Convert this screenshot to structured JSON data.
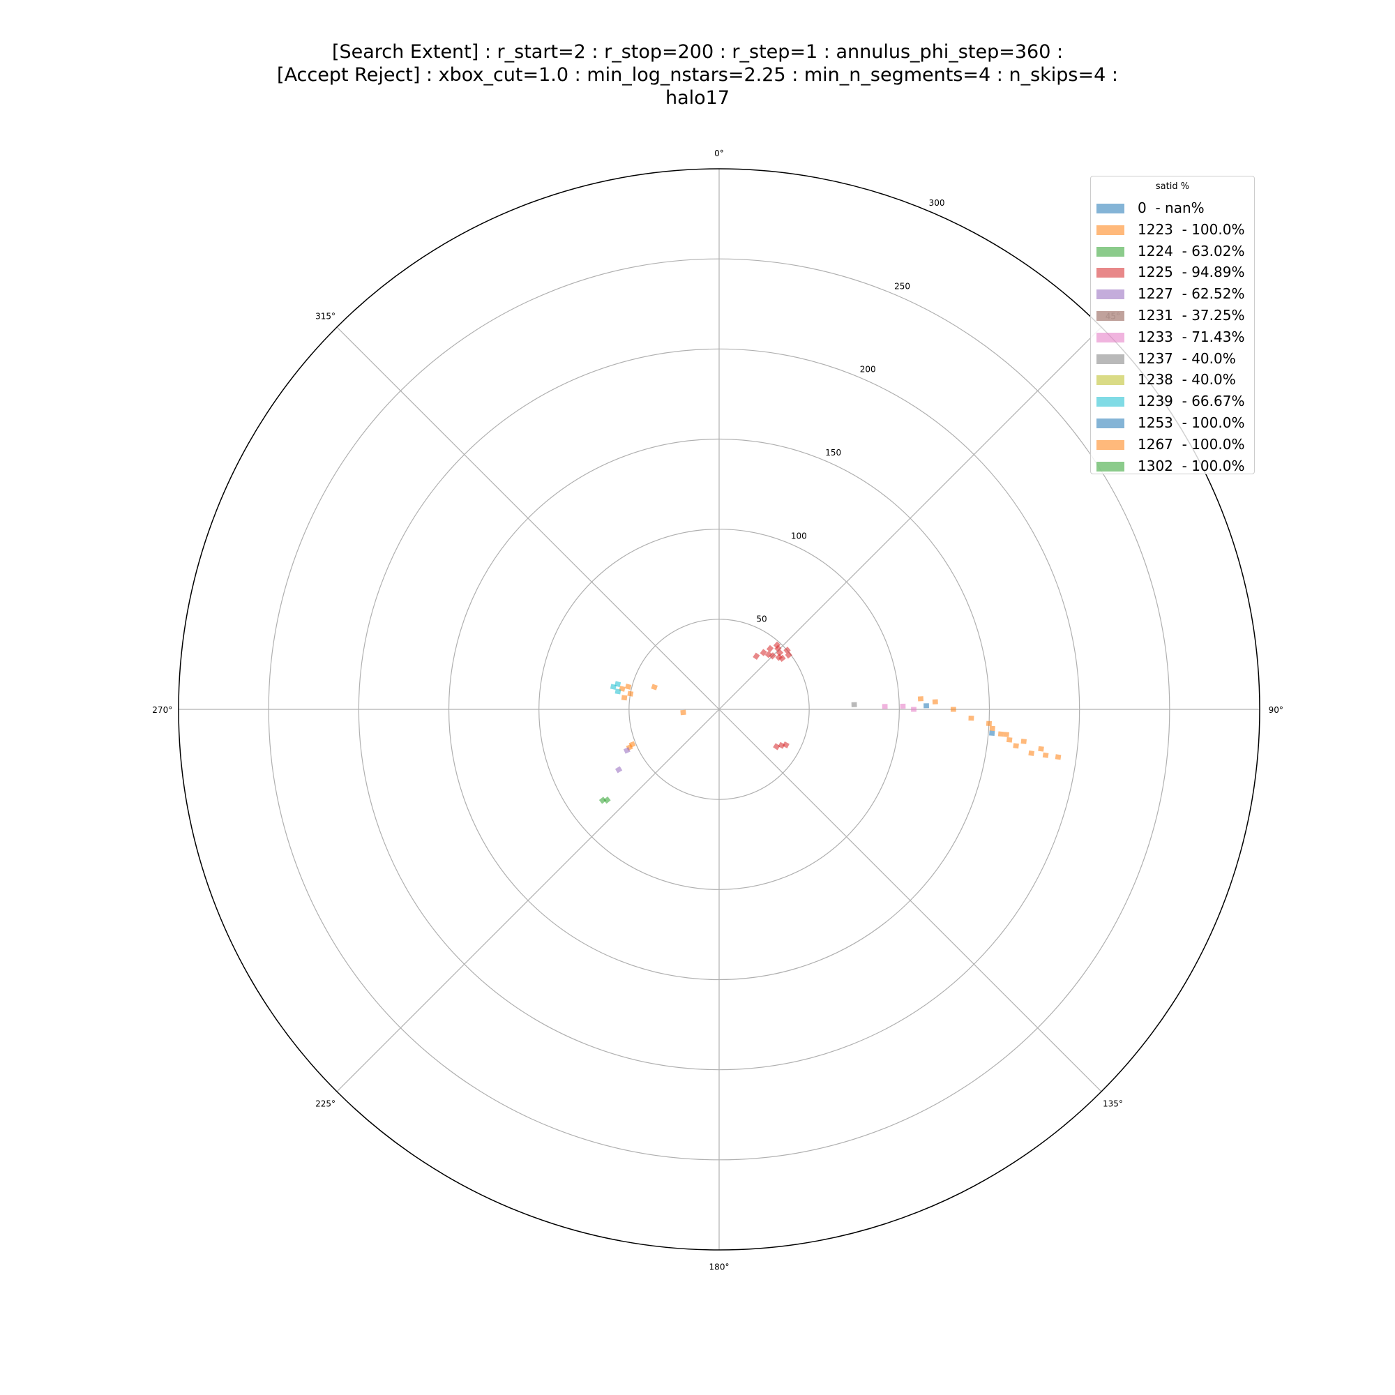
{
  "title_lines": [
    "[Search Extent] : r_start=2 : r_stop=200 : r_step=1 : annulus_phi_step=360 :",
    "[Accept Reject] : xbox_cut=1.0 : min_log_nstars=2.25 : min_n_segments=4 : n_skips=4 :",
    "halo17"
  ],
  "legend": {
    "title": "satid %",
    "entries": [
      {
        "label": "0  - nan%",
        "color": "#1f77b4"
      },
      {
        "label": "1223  - 100.0%",
        "color": "#ff7f0e"
      },
      {
        "label": "1224  - 63.02%",
        "color": "#2ca02c"
      },
      {
        "label": "1225  - 94.89%",
        "color": "#d62728"
      },
      {
        "label": "1227  - 62.52%",
        "color": "#9467bd"
      },
      {
        "label": "1231  - 37.25%",
        "color": "#8c564b"
      },
      {
        "label": "1233  - 71.43%",
        "color": "#e377c2"
      },
      {
        "label": "1237  - 40.0%",
        "color": "#7f7f7f"
      },
      {
        "label": "1238  - 40.0%",
        "color": "#bcbd22"
      },
      {
        "label": "1239  - 66.67%",
        "color": "#17becf"
      },
      {
        "label": "1253  - 100.0%",
        "color": "#1f77b4"
      },
      {
        "label": "1267  - 100.0%",
        "color": "#ff7f0e"
      },
      {
        "label": "1302  - 100.0%",
        "color": "#2ca02c"
      }
    ]
  },
  "chart_data": {
    "type": "polar-scatter",
    "theta_direction": "clockwise",
    "theta_zero": "top",
    "r_max": 300,
    "r_ticks": [
      50,
      100,
      150,
      200,
      250,
      300
    ],
    "r_tick_labels": [
      "50",
      "100",
      "150",
      "200",
      "250",
      "300"
    ],
    "theta_ticks": [
      0,
      45,
      90,
      135,
      180,
      225,
      270,
      315
    ],
    "theta_tick_labels": [
      "0°",
      "45°",
      "90°",
      "135°",
      "180°",
      "225°",
      "270°",
      "315°"
    ],
    "r_label_angle": 22.5,
    "grid": true,
    "legend_position": "top-right",
    "series": [
      {
        "name": "1225",
        "color": "#d62728",
        "points": [
          {
            "r": 40,
            "theta": 38
          },
          {
            "r": 44,
            "theta": 40
          },
          {
            "r": 48,
            "theta": 42
          },
          {
            "r": 42,
            "theta": 45
          },
          {
            "r": 46,
            "theta": 47
          },
          {
            "r": 50,
            "theta": 49
          },
          {
            "r": 45,
            "theta": 51
          },
          {
            "r": 49,
            "theta": 52
          },
          {
            "r": 47,
            "theta": 44
          },
          {
            "r": 36,
            "theta": 35
          },
          {
            "r": 41,
            "theta": 42
          },
          {
            "r": 44,
            "theta": 49
          },
          {
            "r": 38,
            "theta": 123
          },
          {
            "r": 40,
            "theta": 120
          },
          {
            "r": 42,
            "theta": 118
          }
        ]
      },
      {
        "name": "1223",
        "color": "#ff7f0e",
        "points": [
          {
            "r": 112,
            "theta": 87
          },
          {
            "r": 120,
            "theta": 88
          },
          {
            "r": 130,
            "theta": 90
          },
          {
            "r": 140,
            "theta": 92
          },
          {
            "r": 150,
            "theta": 93
          },
          {
            "r": 160,
            "theta": 95
          },
          {
            "r": 170,
            "theta": 96
          },
          {
            "r": 180,
            "theta": 97
          },
          {
            "r": 190,
            "theta": 98
          },
          {
            "r": 152,
            "theta": 94
          },
          {
            "r": 157,
            "theta": 95
          },
          {
            "r": 162,
            "theta": 96
          },
          {
            "r": 166,
            "theta": 97
          },
          {
            "r": 175,
            "theta": 98
          },
          {
            "r": 183,
            "theta": 98
          },
          {
            "r": 55,
            "theta": 282
          },
          {
            "r": 52,
            "theta": 284
          },
          {
            "r": 50,
            "theta": 280
          },
          {
            "r": 53,
            "theta": 277
          },
          {
            "r": 38,
            "theta": 289
          },
          {
            "r": 20,
            "theta": 265
          },
          {
            "r": 54,
            "theta": 247
          },
          {
            "r": 52,
            "theta": 248
          }
        ]
      },
      {
        "name": "1239",
        "color": "#17becf",
        "points": [
          {
            "r": 60,
            "theta": 282
          },
          {
            "r": 58,
            "theta": 284
          },
          {
            "r": 57,
            "theta": 280
          }
        ]
      },
      {
        "name": "1227",
        "color": "#9467bd",
        "points": [
          {
            "r": 56,
            "theta": 246
          },
          {
            "r": 65,
            "theta": 239
          }
        ]
      },
      {
        "name": "1302",
        "color": "#2ca02c",
        "points": [
          {
            "r": 80,
            "theta": 231
          },
          {
            "r": 82,
            "theta": 232
          }
        ]
      },
      {
        "name": "1233",
        "color": "#e377c2",
        "points": [
          {
            "r": 92,
            "theta": 89
          },
          {
            "r": 102,
            "theta": 89
          },
          {
            "r": 108,
            "theta": 90
          }
        ]
      },
      {
        "name": "1253",
        "color": "#1f77b4",
        "points": [
          {
            "r": 115,
            "theta": 89
          },
          {
            "r": 152,
            "theta": 95
          }
        ]
      },
      {
        "name": "1237",
        "color": "#7f7f7f",
        "points": [
          {
            "r": 75,
            "theta": 88
          }
        ]
      }
    ]
  }
}
